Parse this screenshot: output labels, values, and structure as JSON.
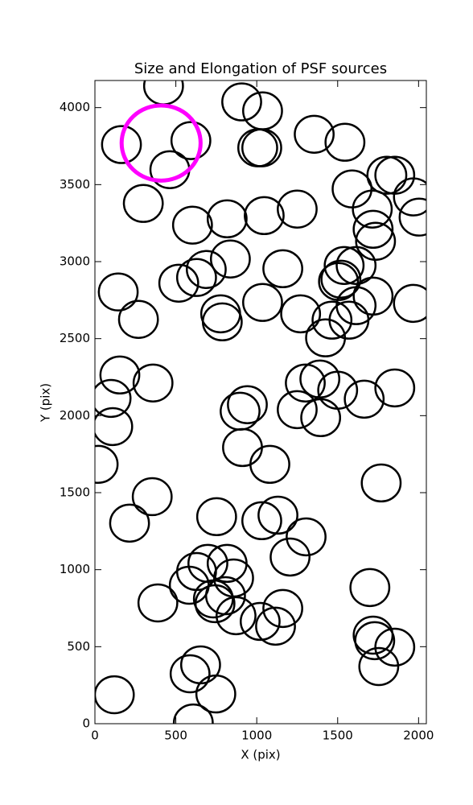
{
  "chart_data": {
    "type": "scatter",
    "title": "Size and Elongation of PSF sources",
    "x_label": "X (pix)",
    "y_label": "Y (pix)",
    "xlim": [
      0,
      2048
    ],
    "ylim": [
      0,
      4176
    ],
    "xticks": [
      0,
      500,
      1000,
      1500,
      2000
    ],
    "yticks": [
      0,
      500,
      1000,
      1500,
      2000,
      2500,
      3000,
      3500,
      4000
    ],
    "series": [
      {
        "color": "#000000",
        "marker_radius": 120,
        "line_width": 2.5,
        "x": [
          424,
          907,
          1036,
          164,
          593,
          463,
          1006,
          1031,
          1355,
          1545,
          299,
          1589,
          1804,
          1853,
          1968,
          2003,
          1714,
          1719,
          1734,
          603,
          817,
          1046,
          1250,
          837,
          688,
          628,
          518,
          1161,
          1540,
          1614,
          1520,
          1505,
          144,
          269,
          1036,
          777,
          787,
          1271,
          1465,
          1425,
          1570,
          1614,
          1719,
          1968,
          154,
          359,
          100,
          110,
          20,
          942,
          897,
          1300,
          1390,
          1250,
          1395,
          1500,
          1664,
          1853,
          912,
          1081,
          1769,
          354,
          214,
          752,
          1131,
          1031,
          1305,
          1206,
          628,
          698,
          817,
          857,
          583,
          389,
          732,
          807,
          742,
          872,
          1021,
          1161,
          1116,
          1699,
          1719,
          1729,
          1853,
          1754,
          653,
          588,
          747,
          120,
          608
        ],
        "y": [
          4141,
          4037,
          3979,
          3760,
          3786,
          3597,
          3739,
          3739,
          3827,
          3775,
          3378,
          3472,
          3561,
          3561,
          3420,
          3289,
          3341,
          3210,
          3132,
          3237,
          3278,
          3299,
          3341,
          3017,
          2949,
          2897,
          2860,
          2954,
          2975,
          2975,
          2886,
          2871,
          2803,
          2625,
          2735,
          2661,
          2609,
          2661,
          2620,
          2505,
          2620,
          2714,
          2776,
          2729,
          2264,
          2212,
          2112,
          1929,
          1684,
          2071,
          2029,
          2212,
          2238,
          2039,
          1987,
          2165,
          2107,
          2180,
          1793,
          1684,
          1563,
          1474,
          1302,
          1344,
          1354,
          1318,
          1213,
          1082,
          988,
          1041,
          1041,
          946,
          899,
          784,
          810,
          831,
          779,
          701,
          664,
          748,
          633,
          884,
          575,
          539,
          497,
          371,
          382,
          324,
          193,
          188,
          5
        ]
      },
      {
        "color": "#ff00ff",
        "marker_radius": 244,
        "line_width": 5,
        "x": [
          409
        ],
        "y": [
          3770
        ]
      }
    ]
  }
}
